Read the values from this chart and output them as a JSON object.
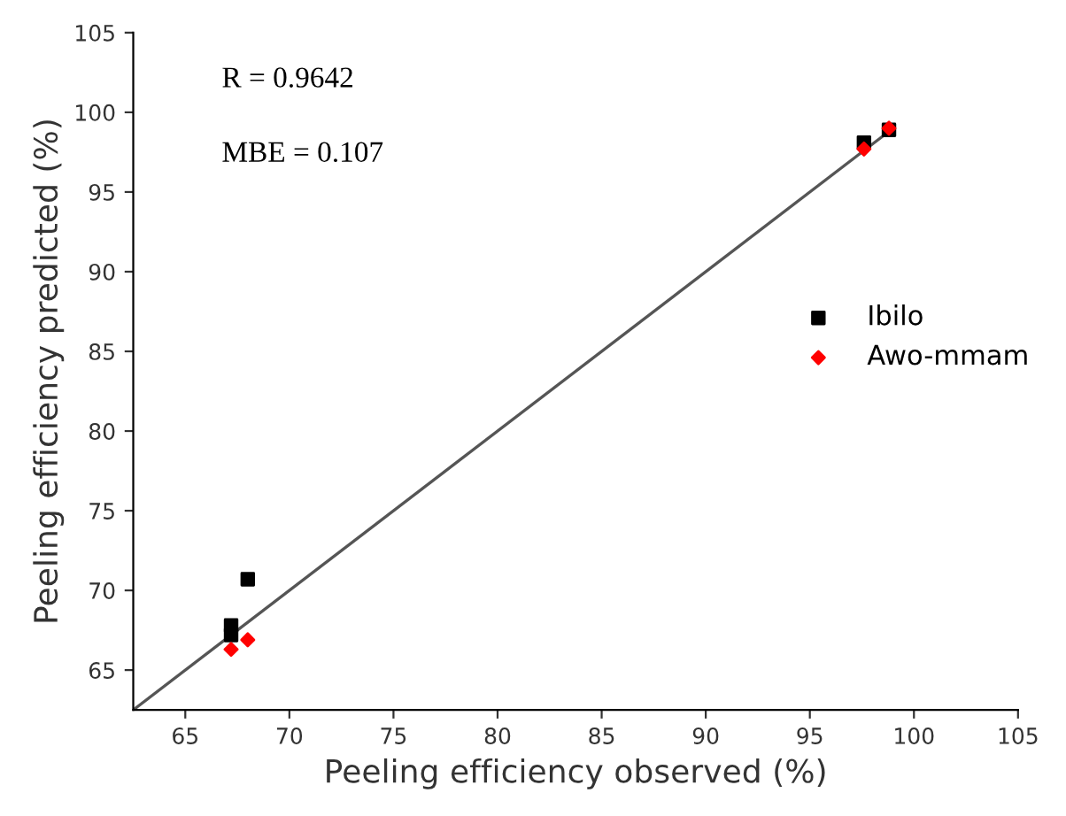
{
  "chart_data": {
    "type": "scatter",
    "xlabel": "Peeling efficiency observed (%)",
    "ylabel": "Peeling efficiency predicted (%)",
    "annotations": [
      "R = 0.9642",
      "MBE = 0.107"
    ],
    "series": [
      {
        "name": "Ibilo",
        "color": "#000000",
        "marker": "square",
        "x": [
          67.2,
          67.2,
          68.0,
          97.6,
          98.8
        ],
        "values": [
          67.8,
          67.2,
          70.7,
          98.1,
          98.9
        ]
      },
      {
        "name": "Awo-mmam",
        "color": "#ff0000",
        "marker": "diamond",
        "x": [
          67.2,
          68.0,
          97.6,
          98.8
        ],
        "values": [
          66.3,
          66.9,
          97.7,
          99.0
        ]
      },
      {
        "type": "line",
        "color": "#555555",
        "x": [
          62.5,
          98.8
        ],
        "values": [
          62.5,
          98.8
        ]
      }
    ],
    "xlim": [
      62.5,
      105
    ],
    "ylim": [
      62.5,
      105
    ],
    "xticks": [
      65,
      70,
      75,
      80,
      85,
      90,
      95,
      100,
      105
    ],
    "yticks": [
      65,
      70,
      75,
      80,
      85,
      90,
      95,
      100,
      105
    ],
    "grid": false,
    "legend": "right"
  }
}
